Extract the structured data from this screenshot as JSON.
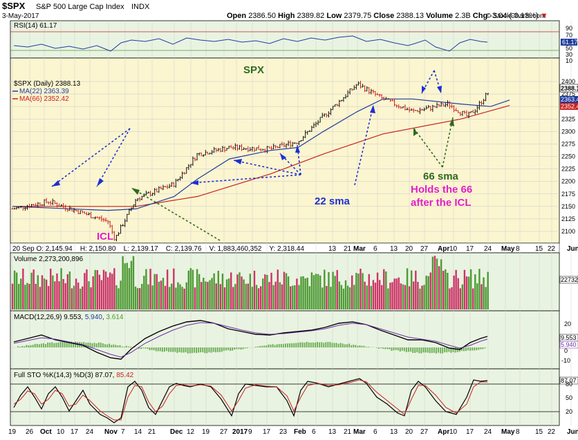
{
  "header": {
    "ticker": "$SPX",
    "name": "S&P 500 Large Cap Index",
    "exchange": "INDX",
    "date": "3-May-2017",
    "open_label": "Open",
    "open": "2386.50",
    "high_label": "High",
    "high": "2389.82",
    "low_label": "Low",
    "low": "2379.75",
    "close_label": "Close",
    "close": "2388.13",
    "volume_label": "Volume",
    "volume": "2.3B",
    "chg_label": "Chg",
    "chg": "-3.04 (-0.13%)",
    "chg_arrow": "▼",
    "brand": "© StockCharts.com"
  },
  "rsi_panel": {
    "label": "RSI(14)",
    "value": "61.17",
    "ticks": [
      "90",
      "70",
      "50",
      "30",
      "10"
    ],
    "value_tag": "61.17"
  },
  "price_panel": {
    "title_annotation": "SPX",
    "legend_price": "$SPX (Daily) 2388.13",
    "legend_ma22": "MA(22) 2363.39",
    "legend_ma66": "MA(66) 2352.42",
    "ticks": [
      "2400",
      "2375",
      "2350",
      "2325",
      "2300",
      "2275",
      "2250",
      "2225",
      "2200",
      "2175",
      "2150",
      "2125",
      "2100"
    ],
    "tag_close": "2388.1",
    "tag_ma22": "2363.4",
    "tag_ma66": "2352.4",
    "annotations": {
      "icl": "ICL",
      "sma22": "22 sma",
      "sma66": "66 sma",
      "holds_line1": "Holds the 66",
      "holds_line2": "after the ICL"
    },
    "info_bar": "20 Sep O: 2,145.94    H: 2,150.80    L: 2,139.17    C: 2,139.76    V: 1,883,460,352    Y: 2,318.44"
  },
  "volume_panel": {
    "label": "Volume 2,273,200,896",
    "value_tag": "22732"
  },
  "macd_panel": {
    "label": "MACD(12,26,9)",
    "macd": "9.553",
    "signal": "5.940",
    "hist": "3.614",
    "ticks": [
      "20",
      "0",
      "-10"
    ],
    "tag_macd": "9.553",
    "tag_signal": "5.940"
  },
  "sto_panel": {
    "label": "Full STO %K(14,3) %D(3)",
    "k": "87.07",
    "d": "85.42",
    "ticks": [
      "80",
      "50",
      "20"
    ],
    "tag_k": "87.07"
  },
  "x_axis": {
    "labels": [
      "19",
      "26",
      "Oct",
      "10",
      "17",
      "24",
      "Nov",
      "7",
      "14",
      "21",
      "Dec",
      "12",
      "19",
      "27",
      "2017",
      "9",
      "17",
      "23",
      "Feb",
      "6",
      "13",
      "21",
      "Mar",
      "6",
      "13",
      "20",
      "27",
      "Apr",
      "10",
      "17",
      "24",
      "May",
      "8",
      "15",
      "22",
      "Jun"
    ]
  },
  "colors": {
    "price_bg": "#fbf5d0",
    "indicator_bg": "#e9f3e1",
    "ma22": "#1f3c9e",
    "ma66": "#c8201c",
    "bar_up": "#111111",
    "bar_down": "#c8201c",
    "vol_up": "#4e9a35",
    "vol_down": "#cc3366",
    "annot_blue": "#1f2fd1",
    "annot_green": "#2e6a1f",
    "annot_magenta": "#e020c8"
  },
  "chart_data": {
    "type": "line",
    "series": [
      {
        "name": "$SPX (Daily)",
        "x": [
          "19 Sep",
          "3 Oct",
          "17 Oct",
          "31 Oct",
          "4 Nov",
          "14 Nov",
          "1 Dec",
          "12 Dec",
          "27 Dec",
          "17 Jan",
          "1 Feb",
          "13 Feb",
          "1 Mar",
          "13 Mar",
          "27 Mar",
          "4 Apr",
          "13 Apr",
          "17 Apr",
          "25 Apr",
          "3 May"
        ],
        "values": [
          2145,
          2160,
          2140,
          2120,
          2085,
          2165,
          2195,
          2255,
          2268,
          2265,
          2280,
          2330,
          2395,
          2365,
          2340,
          2355,
          2330,
          2345,
          2390,
          2388
        ]
      },
      {
        "name": "MA(22)",
        "x": [
          "19 Sep",
          "31 Oct",
          "14 Nov",
          "1 Dec",
          "12 Dec",
          "27 Dec",
          "17 Jan",
          "1 Feb",
          "13 Feb",
          "1 Mar",
          "13 Mar",
          "27 Mar",
          "10 Apr",
          "24 Apr",
          "3 May"
        ],
        "values": [
          2150,
          2142,
          2145,
          2170,
          2205,
          2245,
          2262,
          2268,
          2300,
          2340,
          2365,
          2365,
          2355,
          2350,
          2363
        ]
      },
      {
        "name": "MA(66)",
        "x": [
          "19 Sep",
          "14 Nov",
          "12 Dec",
          "17 Jan",
          "13 Feb",
          "13 Mar",
          "10 Apr",
          "3 May"
        ],
        "values": [
          2150,
          2150,
          2170,
          2215,
          2255,
          2295,
          2325,
          2352
        ]
      }
    ],
    "ylim": [
      2090,
      2410
    ]
  }
}
